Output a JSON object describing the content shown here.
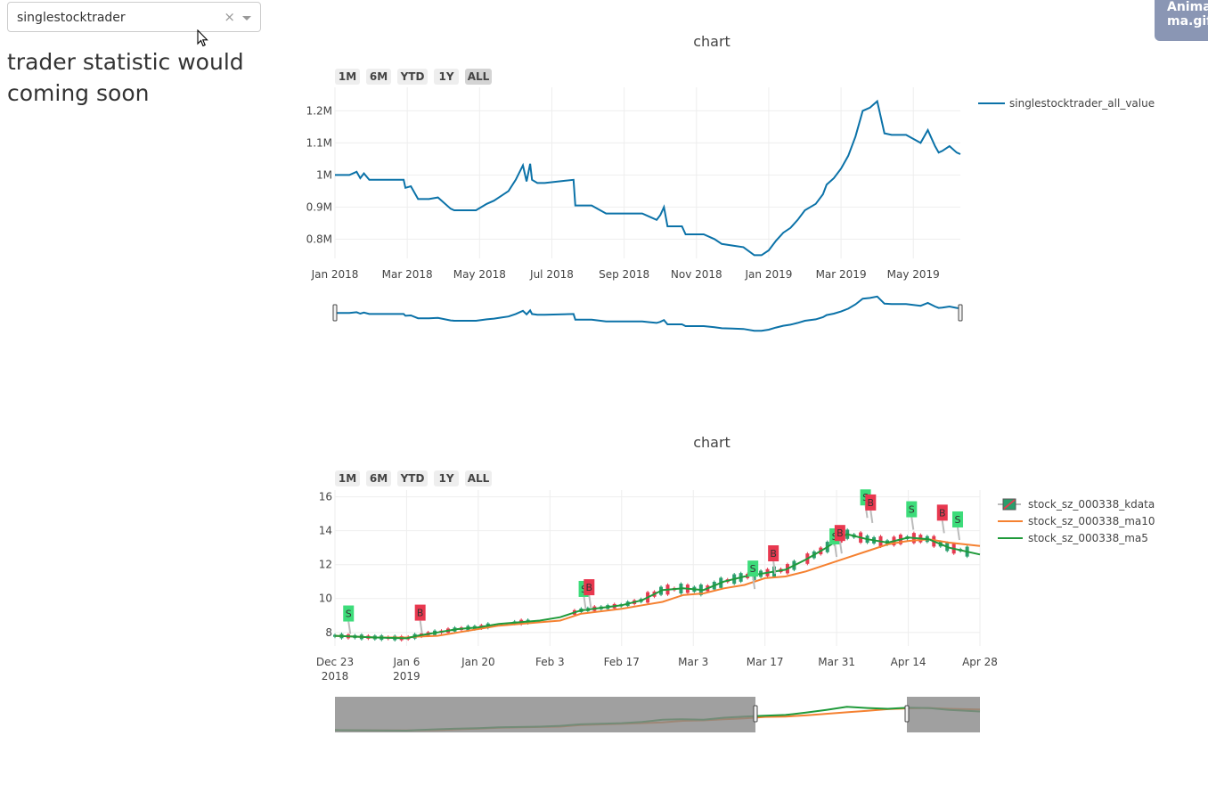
{
  "selector": {
    "value": "singlestocktrader",
    "clear_symbol": "×"
  },
  "status_text": "trader statistic would coming soon",
  "badge": {
    "line1": "Anima",
    "line2": "ma.gif"
  },
  "colors": {
    "value_line": "#0b72a8",
    "ma10": "#f58131",
    "ma5": "#1f9a3a",
    "up": "#2a9e6c",
    "down": "#e53b50",
    "buy_flag": "#e8384f",
    "sell_flag": "#3ddc7a"
  },
  "chart_data": [
    {
      "type": "line",
      "title": "chart",
      "range_buttons": [
        "1M",
        "6M",
        "YTD",
        "1Y",
        "ALL"
      ],
      "active_button": "ALL",
      "x_ticks": [
        "Jan 2018",
        "Mar 2018",
        "May 2018",
        "Jul 2018",
        "Sep 2018",
        "Nov 2018",
        "Jan 2019",
        "Mar 2019",
        "May 2019"
      ],
      "y_ticks": [
        "0.8M",
        "0.9M",
        "1M",
        "1.1M",
        "1.2M"
      ],
      "ylim": [
        0.74,
        1.24
      ],
      "xlim": [
        0,
        17.3
      ],
      "legend_position": "right",
      "series": [
        {
          "name": "singlestocktrader_all_value",
          "x": [
            0,
            0.4,
            0.6,
            0.7,
            0.8,
            0.95,
            1.2,
            1.9,
            1.95,
            2.1,
            2.3,
            2.6,
            2.85,
            3.2,
            3.3,
            3.9,
            4.2,
            4.4,
            4.6,
            4.8,
            5.0,
            5.2,
            5.3,
            5.4,
            5.45,
            5.6,
            5.8,
            6.6,
            6.65,
            6.9,
            7.0,
            7.1,
            7.5,
            8.5,
            8.7,
            8.9,
            9.0,
            9.1,
            9.2,
            9.4,
            9.6,
            9.7,
            10.2,
            10.5,
            10.7,
            11.0,
            11.3,
            11.6,
            11.8,
            12.0,
            12.2,
            12.4,
            12.6,
            12.8,
            13.0,
            13.3,
            13.5,
            13.6,
            13.8,
            14.0,
            14.2,
            14.4,
            14.6,
            14.8,
            15.0,
            15.2,
            15.4,
            15.5,
            15.8,
            16.2,
            16.4,
            16.6,
            16.7,
            16.8,
            17.0,
            17.2,
            17.3
          ],
          "y": [
            1.0,
            1.0,
            1.01,
            0.99,
            1.005,
            0.985,
            0.985,
            0.985,
            0.96,
            0.965,
            0.925,
            0.925,
            0.93,
            0.895,
            0.89,
            0.89,
            0.91,
            0.92,
            0.935,
            0.95,
            0.985,
            1.03,
            0.98,
            1.035,
            0.985,
            0.975,
            0.975,
            0.985,
            0.905,
            0.905,
            0.905,
            0.905,
            0.88,
            0.88,
            0.87,
            0.86,
            0.875,
            0.9,
            0.84,
            0.84,
            0.84,
            0.815,
            0.815,
            0.8,
            0.785,
            0.78,
            0.775,
            0.75,
            0.75,
            0.765,
            0.795,
            0.82,
            0.835,
            0.86,
            0.89,
            0.91,
            0.94,
            0.97,
            0.99,
            1.02,
            1.06,
            1.12,
            1.2,
            1.21,
            1.23,
            1.13,
            1.125,
            1.125,
            1.125,
            1.1,
            1.14,
            1.09,
            1.07,
            1.075,
            1.09,
            1.07,
            1.065
          ]
        }
      ]
    },
    {
      "type": "candlestick",
      "title": "chart",
      "range_buttons": [
        "1M",
        "6M",
        "YTD",
        "1Y",
        "ALL"
      ],
      "active_button": "",
      "x_ticks": [
        {
          "l1": "Dec 23",
          "l2": "2018"
        },
        {
          "l1": "Jan 6",
          "l2": "2019"
        },
        {
          "l1": "Jan 20",
          "l2": ""
        },
        {
          "l1": "Feb 3",
          "l2": ""
        },
        {
          "l1": "Feb 17",
          "l2": ""
        },
        {
          "l1": "Mar 3",
          "l2": ""
        },
        {
          "l1": "Mar 17",
          "l2": ""
        },
        {
          "l1": "Mar 31",
          "l2": ""
        },
        {
          "l1": "Apr 14",
          "l2": ""
        },
        {
          "l1": "Apr 28",
          "l2": ""
        }
      ],
      "y_ticks": [
        "8",
        "10",
        "12",
        "14",
        "16"
      ],
      "ylim": [
        7.2,
        16.4
      ],
      "xlim": [
        0,
        126
      ],
      "legend_position": "right",
      "series": [
        {
          "name": "stock_sz_000338_kdata",
          "x": [],
          "open": [],
          "close": []
        },
        {
          "name": "stock_sz_000338_ma10",
          "x": [
            0,
            8,
            14,
            16,
            20,
            24,
            28,
            32,
            40,
            44,
            48,
            56,
            60,
            64,
            68,
            72,
            76,
            80,
            84,
            88,
            92,
            96,
            100,
            104,
            108,
            112,
            116,
            120,
            126
          ],
          "y": [
            7.8,
            7.7,
            7.7,
            7.75,
            7.8,
            8.0,
            8.2,
            8.4,
            8.6,
            8.7,
            9.1,
            9.4,
            9.6,
            9.8,
            10.2,
            10.3,
            10.6,
            10.8,
            11.2,
            11.3,
            11.6,
            12.0,
            12.4,
            12.8,
            13.2,
            13.4,
            13.5,
            13.3,
            13.1
          ]
        },
        {
          "name": "stock_sz_000338_ma5",
          "x": [
            0,
            8,
            14,
            16,
            20,
            24,
            28,
            32,
            40,
            44,
            48,
            56,
            60,
            64,
            68,
            72,
            76,
            80,
            84,
            88,
            92,
            96,
            100,
            104,
            108,
            112,
            116,
            120,
            126
          ],
          "y": [
            7.8,
            7.7,
            7.65,
            7.8,
            8.0,
            8.2,
            8.3,
            8.5,
            8.7,
            8.9,
            9.3,
            9.6,
            9.9,
            10.5,
            10.6,
            10.5,
            11.0,
            11.3,
            11.5,
            11.7,
            12.3,
            13.0,
            13.8,
            13.5,
            13.3,
            13.6,
            13.5,
            13.0,
            12.6
          ]
        }
      ],
      "markers": [
        {
          "label": "S",
          "kind": "sell",
          "x": 3,
          "y": 7.75
        },
        {
          "label": "B",
          "kind": "buy",
          "x": 17,
          "y": 7.8
        },
        {
          "label": "S",
          "kind": "sell",
          "x": 49,
          "y": 9.2
        },
        {
          "label": "B",
          "kind": "buy",
          "x": 50,
          "y": 9.3
        },
        {
          "label": "S",
          "kind": "sell",
          "x": 82,
          "y": 10.4
        },
        {
          "label": "B",
          "kind": "buy",
          "x": 86,
          "y": 11.3
        },
        {
          "label": "S",
          "kind": "sell",
          "x": 98,
          "y": 12.3
        },
        {
          "label": "B",
          "kind": "buy",
          "x": 99,
          "y": 12.5
        },
        {
          "label": "S",
          "kind": "sell",
          "x": 104,
          "y": 14.6
        },
        {
          "label": "B",
          "kind": "buy",
          "x": 105,
          "y": 14.3
        },
        {
          "label": "S",
          "kind": "sell",
          "x": 113,
          "y": 13.9
        },
        {
          "label": "B",
          "kind": "buy",
          "x": 119,
          "y": 13.7
        },
        {
          "label": "S",
          "kind": "sell",
          "x": 122,
          "y": 13.3
        }
      ]
    }
  ]
}
